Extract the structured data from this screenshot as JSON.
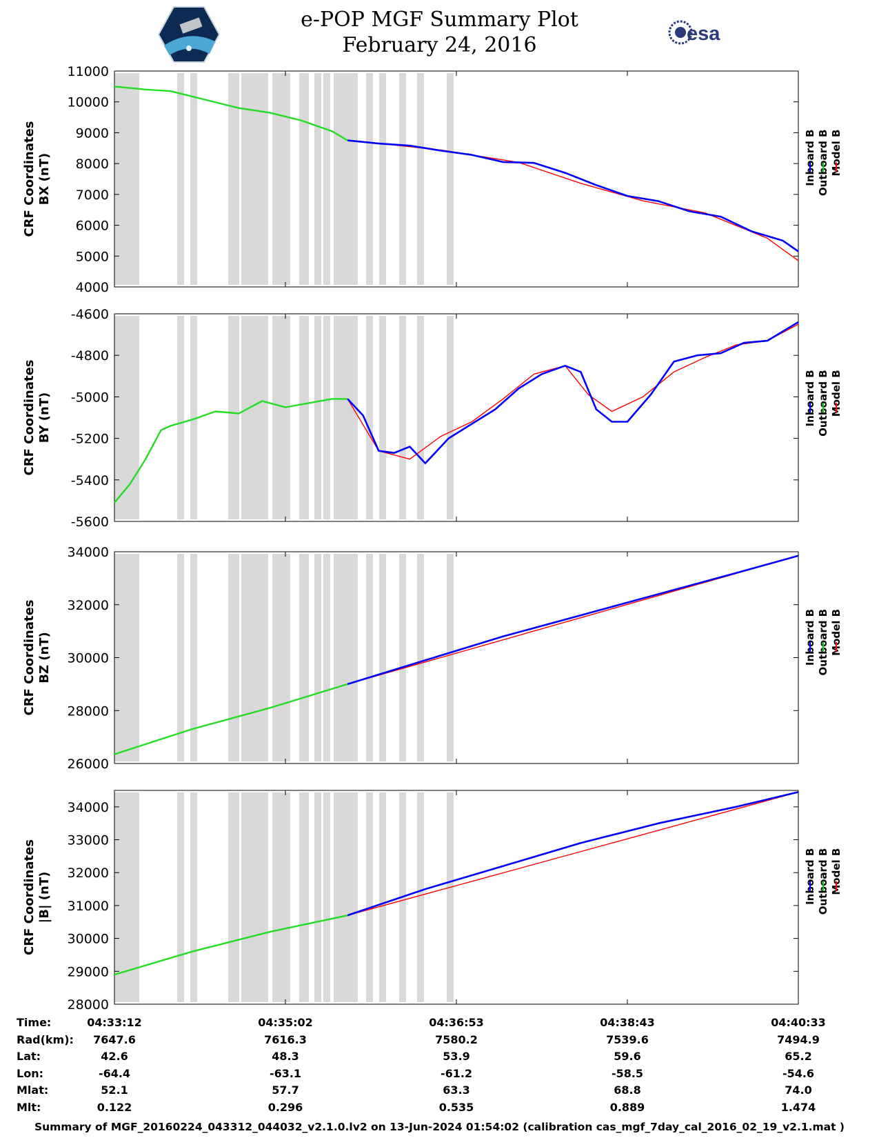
{
  "title": {
    "line1": "e-POP MGF Summary Plot",
    "line2": "February 24, 2016"
  },
  "logos": {
    "left_icon": "epop-mission-patch-icon",
    "right_text": "esa"
  },
  "legend": {
    "entries": [
      "Inboard B",
      "Outboard B",
      "Model B"
    ],
    "colors": [
      "#0000ff",
      "#00dd00",
      "#ff0000"
    ]
  },
  "colors": {
    "gap_shading": "#d9d9d9",
    "inboard": "#0000ff",
    "outboard": "#22dd22",
    "model": "#ff0000"
  },
  "chart_data": [
    {
      "type": "line",
      "ylabel_line1": "CRF Coordinates",
      "ylabel_line2": "BX (nT)",
      "ylim": [
        4000,
        11000
      ],
      "yticks": [
        "11000",
        "10000",
        "9000",
        "8000",
        "7000",
        "6000",
        "5000",
        "4000"
      ],
      "ytick_values": [
        11000,
        10000,
        9000,
        8000,
        7000,
        6000,
        5000,
        4000
      ],
      "xlim": [
        0,
        440
      ],
      "series": [
        {
          "name": "Outboard B",
          "x": [
            0,
            20,
            36,
            60,
            80,
            100,
            120,
            140,
            150
          ],
          "values": [
            10500,
            10400,
            10350,
            10050,
            9800,
            9650,
            9400,
            9050,
            8750
          ]
        },
        {
          "name": "Inboard B",
          "x": [
            150,
            170,
            190,
            210,
            230,
            250,
            270,
            290,
            310,
            330,
            350,
            370,
            390,
            410,
            430,
            440
          ],
          "values": [
            8750,
            8650,
            8580,
            8420,
            8280,
            8050,
            8020,
            7700,
            7300,
            6950,
            6780,
            6450,
            6280,
            5800,
            5500,
            5150
          ]
        },
        {
          "name": "Model B",
          "x": [
            150,
            210,
            260,
            300,
            340,
            380,
            420,
            440
          ],
          "values": [
            8760,
            8440,
            8040,
            7360,
            6790,
            6400,
            5580,
            4850
          ]
        }
      ]
    },
    {
      "type": "line",
      "ylabel_line1": "CRF Coordinates",
      "ylabel_line2": "BY (nT)",
      "ylim": [
        -5600,
        -4600
      ],
      "yticks": [
        "-4600",
        "-4800",
        "-5000",
        "-5200",
        "-5400",
        "-5600"
      ],
      "ytick_values": [
        -4600,
        -4800,
        -5000,
        -5200,
        -5400,
        -5600
      ],
      "xlim": [
        0,
        440
      ],
      "series": [
        {
          "name": "Outboard B",
          "x": [
            0,
            10,
            20,
            30,
            36,
            50,
            65,
            80,
            95,
            110,
            125,
            140,
            150
          ],
          "values": [
            -5510,
            -5420,
            -5300,
            -5160,
            -5140,
            -5110,
            -5070,
            -5080,
            -5020,
            -5050,
            -5030,
            -5010,
            -5010
          ]
        },
        {
          "name": "Inboard B",
          "x": [
            150,
            160,
            170,
            180,
            190,
            200,
            215,
            230,
            245,
            260,
            275,
            290,
            300,
            310,
            320,
            330,
            345,
            360,
            375,
            390,
            405,
            420,
            440
          ],
          "values": [
            -5010,
            -5090,
            -5260,
            -5270,
            -5240,
            -5320,
            -5200,
            -5130,
            -5060,
            -4960,
            -4890,
            -4850,
            -4880,
            -5060,
            -5120,
            -5120,
            -4990,
            -4830,
            -4800,
            -4790,
            -4740,
            -4730,
            -4640
          ]
        },
        {
          "name": "Model B",
          "x": [
            150,
            170,
            190,
            210,
            230,
            250,
            270,
            290,
            305,
            320,
            340,
            360,
            380,
            400,
            420,
            440
          ],
          "values": [
            -5010,
            -5260,
            -5300,
            -5190,
            -5120,
            -5010,
            -4890,
            -4850,
            -4990,
            -5070,
            -5000,
            -4880,
            -4810,
            -4750,
            -4730,
            -4650
          ]
        }
      ]
    },
    {
      "type": "line",
      "ylabel_line1": "CRF Coordinates",
      "ylabel_line2": "BZ (nT)",
      "ylim": [
        26000,
        34000
      ],
      "yticks": [
        "34000",
        "32000",
        "30000",
        "28000",
        "26000"
      ],
      "ytick_values": [
        34000,
        32000,
        30000,
        28000,
        26000
      ],
      "xlim": [
        0,
        440
      ],
      "series": [
        {
          "name": "Outboard B",
          "x": [
            0,
            50,
            100,
            150
          ],
          "values": [
            26350,
            27300,
            28100,
            29000
          ]
        },
        {
          "name": "Inboard B",
          "x": [
            150,
            200,
            250,
            300,
            350,
            400,
            440
          ],
          "values": [
            29000,
            29900,
            30800,
            31600,
            32400,
            33200,
            33850
          ]
        },
        {
          "name": "Model B",
          "x": [
            150,
            440
          ],
          "values": [
            29000,
            33850
          ]
        }
      ]
    },
    {
      "type": "line",
      "ylabel_line1": "CRF Coordinates",
      "ylabel_line2": "|B| (nT)",
      "ylim": [
        28000,
        34500
      ],
      "yticks": [
        "34000",
        "33000",
        "32000",
        "31000",
        "30000",
        "29000",
        "28000"
      ],
      "ytick_values": [
        34000,
        33000,
        32000,
        31000,
        30000,
        29000,
        28000
      ],
      "xlim": [
        0,
        440
      ],
      "series": [
        {
          "name": "Outboard B",
          "x": [
            0,
            50,
            100,
            150
          ],
          "values": [
            28900,
            29600,
            30200,
            30700
          ]
        },
        {
          "name": "Inboard B",
          "x": [
            150,
            200,
            250,
            300,
            350,
            400,
            440
          ],
          "values": [
            30700,
            31500,
            32200,
            32900,
            33500,
            34000,
            34450
          ]
        },
        {
          "name": "Model B",
          "x": [
            150,
            440
          ],
          "values": [
            30700,
            34450
          ]
        }
      ]
    }
  ],
  "gap_intervals": [
    [
      0,
      36
    ],
    [
      91,
      101
    ],
    [
      110,
      120
    ],
    [
      165,
      181
    ],
    [
      184,
      223
    ],
    [
      229,
      255
    ],
    [
      268,
      282
    ],
    [
      290,
      300
    ],
    [
      303,
      313
    ],
    [
      318,
      353
    ],
    [
      365,
      375
    ],
    [
      384,
      394
    ],
    [
      413,
      423
    ],
    [
      439,
      449
    ],
    [
      482,
      492
    ]
  ],
  "time_axis": {
    "rows": [
      {
        "label": "Time:",
        "values": [
          "04:33:12",
          "04:35:02",
          "04:36:53",
          "04:38:43",
          "04:40:33"
        ]
      },
      {
        "label": "Rad(km):",
        "values": [
          "7647.6",
          "7616.3",
          "7580.2",
          "7539.6",
          "7494.9"
        ]
      },
      {
        "label": "Lat:",
        "values": [
          "42.6",
          "48.3",
          "53.9",
          "59.6",
          "65.2"
        ]
      },
      {
        "label": "Lon:",
        "values": [
          "-64.4",
          "-63.1",
          "-61.2",
          "-58.5",
          "-54.6"
        ]
      },
      {
        "label": "Mlat:",
        "values": [
          "52.1",
          "57.7",
          "63.3",
          "68.8",
          "74.0"
        ]
      },
      {
        "label": "Mlt:",
        "values": [
          "0.122",
          "0.296",
          "0.535",
          "0.889",
          "1.474"
        ]
      }
    ]
  },
  "footer": "Summary of MGF_20160224_043312_044032_v2.1.0.lv2 on 13-Jun-2024 01:54:02 (calibration cas_mgf_7day_cal_2016_02_19_v2.1.mat )"
}
